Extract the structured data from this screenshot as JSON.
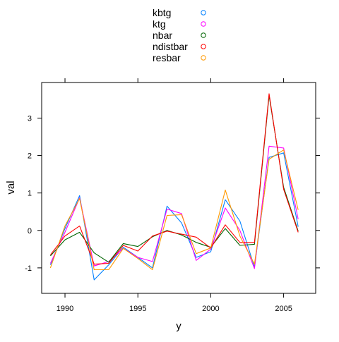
{
  "chart_data": {
    "type": "line",
    "xlabel": "y",
    "ylabel": "val",
    "xlim": [
      1988.4,
      2007.2
    ],
    "ylim": [
      -1.68,
      3.95
    ],
    "x_ticks": [
      1990,
      1995,
      2000,
      2005
    ],
    "y_ticks": [
      -1,
      0,
      1,
      2,
      3
    ],
    "legend_position": "top-center",
    "legend_marker": "circle",
    "x": [
      1989,
      1990,
      1991,
      1992,
      1993,
      1994,
      1995,
      1996,
      1997,
      1998,
      1999,
      2000,
      2001,
      2002,
      2003,
      2004,
      2005,
      2006
    ],
    "series": [
      {
        "name": "kbtg",
        "color": "#0080ff",
        "values": [
          -0.92,
          0.05,
          0.93,
          -1.32,
          -0.92,
          -0.45,
          -0.72,
          -1.0,
          0.65,
          0.2,
          -0.72,
          -0.57,
          0.82,
          0.25,
          -0.98,
          1.95,
          2.07,
          0.1
        ]
      },
      {
        "name": "ktg",
        "color": "#ff00ff",
        "values": [
          -0.88,
          -0.05,
          0.87,
          -0.95,
          -0.83,
          -0.48,
          -0.72,
          -0.83,
          0.57,
          0.45,
          -0.8,
          -0.5,
          0.6,
          0.0,
          -1.02,
          2.25,
          2.2,
          0.3
        ]
      },
      {
        "name": "nbar",
        "color": "#006400",
        "values": [
          -0.68,
          -0.25,
          -0.05,
          -0.6,
          -0.85,
          -0.35,
          -0.43,
          -0.17,
          0.0,
          -0.12,
          -0.32,
          -0.45,
          0.05,
          -0.4,
          -0.37,
          3.6,
          1.15,
          -0.02
        ]
      },
      {
        "name": "ndistbar",
        "color": "#ff0000",
        "values": [
          -0.65,
          -0.15,
          0.12,
          -0.9,
          -0.88,
          -0.4,
          -0.55,
          -0.15,
          -0.02,
          -0.1,
          -0.18,
          -0.47,
          0.15,
          -0.32,
          -0.32,
          3.65,
          1.1,
          -0.05
        ]
      },
      {
        "name": "resbar",
        "color": "#ff9900",
        "values": [
          -1.0,
          0.12,
          0.85,
          -1.05,
          -1.05,
          -0.48,
          -0.75,
          -1.05,
          0.4,
          0.42,
          -0.62,
          -0.47,
          1.08,
          -0.15,
          -0.9,
          1.9,
          2.15,
          0.55
        ]
      }
    ]
  }
}
